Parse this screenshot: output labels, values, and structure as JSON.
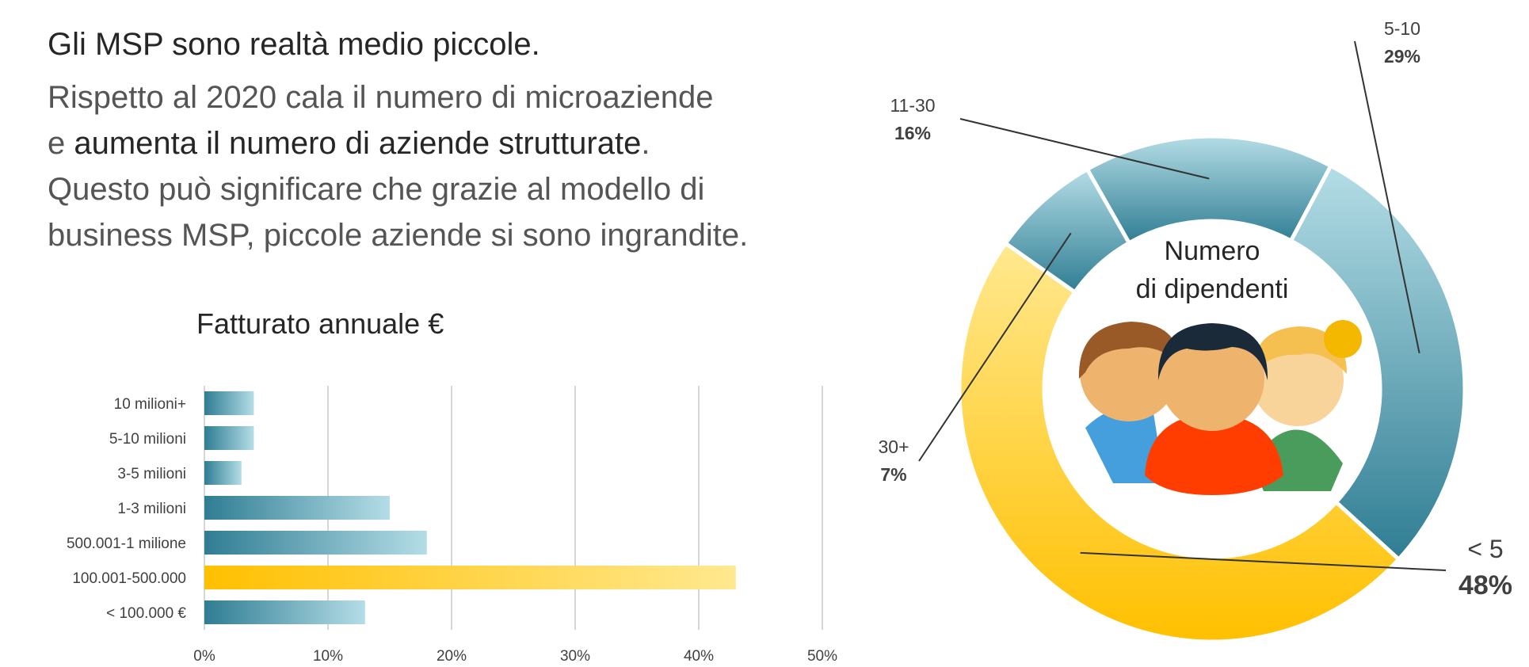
{
  "intro": {
    "headline": "Gli MSP sono realtà medio piccole",
    "headline_tail": ".",
    "line1": "Rispetto al 2020 cala il numero di microaziende",
    "line2_prefix": "e ",
    "line2_bold": "aumenta il numero di aziende strutturate",
    "line2_tail": ".",
    "line3": "Questo può significare che grazie al modello di",
    "line4": "business MSP, piccole aziende si sono ingrandite."
  },
  "chart_data": [
    {
      "type": "bar",
      "orientation": "horizontal",
      "title": "Fatturato annuale €",
      "categories": [
        "10 milioni+",
        "5-10 milioni",
        "3-5 milioni",
        "1-3 milioni",
        "500.001-1 milione",
        "100.001-500.000",
        "< 100.000 €"
      ],
      "values": [
        4,
        4,
        3,
        15,
        18,
        43,
        13
      ],
      "highlight_index": 5,
      "xlim": [
        0,
        50
      ],
      "xticks": [
        "0%",
        "10%",
        "20%",
        "30%",
        "40%",
        "50%"
      ],
      "grid": true,
      "colors": {
        "bar": "#2f7d93",
        "bar_light": "#b4dde6",
        "highlight": "#ffc000",
        "highlight_light": "#ffe88f"
      }
    },
    {
      "type": "pie",
      "variant": "donut",
      "center_label": [
        "Numero",
        "di dipendenti"
      ],
      "slices": [
        {
          "label": "5-10",
          "value": 29,
          "pct": "29%"
        },
        {
          "label": "< 5",
          "value": 48,
          "pct": "48%"
        },
        {
          "label": "30+",
          "value": 7,
          "pct": "7%"
        },
        {
          "label": "11-30",
          "value": 16,
          "pct": "16%"
        }
      ],
      "colors": {
        "blue_dark": "#2f7d93",
        "blue_light": "#b4dde6",
        "yellow_dark": "#ffc000",
        "yellow_light": "#ffe88f"
      }
    }
  ],
  "people_icon": "three-people-icon"
}
